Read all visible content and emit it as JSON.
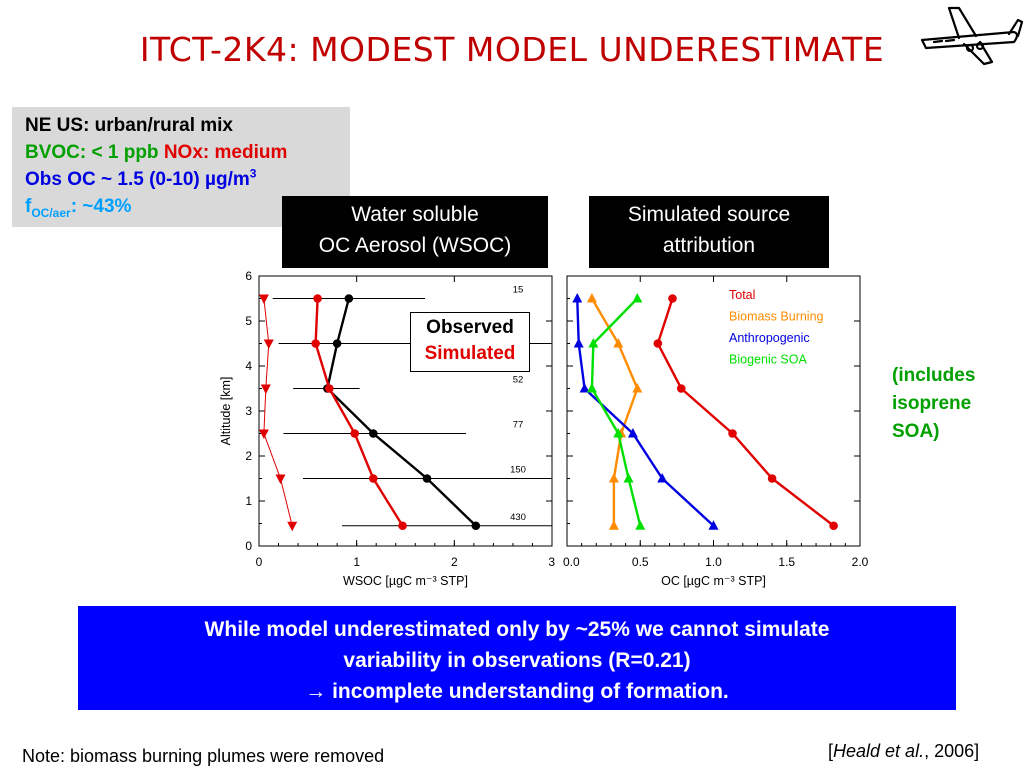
{
  "slide": {
    "title": "ITCT-2K4: MODEST MODEL UNDERESTIMATE",
    "info": {
      "line1": "NE US: urban/rural mix",
      "bvoc": "BVOC: < 1 ppb",
      "nox": "NOx: medium",
      "obs_oc": "Obs OC ~ 1.5 (0-10) µg/m",
      "obs_oc_sup": "3",
      "foc": "f",
      "foc_sub": "OC/aer",
      "foc_val": ": ~43%"
    },
    "wsoc_box": {
      "line1": "Water soluble",
      "line2": "OC Aerosol (WSOC)"
    },
    "source_box": {
      "line1": "Simulated source",
      "line2": "attribution"
    },
    "legend": {
      "observed": "Observed",
      "simulated": "Simulated"
    },
    "includes": {
      "line1": "(includes",
      "line2": "isoprene",
      "line3": "SOA)"
    },
    "conclusion": {
      "line1": "While model underestimated only by ~25% we cannot simulate",
      "line2": "variability in observations (R=0.21)",
      "line3": "→ incomplete understanding of formation."
    },
    "note": "Note: biomass burning plumes were removed",
    "citation": {
      "open": "[",
      "authors": "Heald et al.",
      "rest": ", 2006]"
    },
    "colors": {
      "title": "#c00000",
      "observed": "#000000",
      "simulated": "#e00000",
      "biomass": "#ff8c00",
      "anthropogenic": "#0000e0",
      "biogenic": "#00e000",
      "bluebox": "#0000ff"
    }
  },
  "chart_data": [
    {
      "type": "line",
      "xlabel": "WSOC [µgC m⁻³ STP]",
      "ylabel": "Altitude [km]",
      "xlim": [
        0,
        3
      ],
      "ylim": [
        0,
        6
      ],
      "xticks": [
        "0",
        "1",
        "2",
        "3"
      ],
      "yticks": [
        "0",
        "1",
        "2",
        "3",
        "4",
        "5",
        "6"
      ],
      "series": [
        {
          "name": "Observed",
          "color": "#000000",
          "marker": "circle",
          "x": [
            0.92,
            0.8,
            0.7,
            1.17,
            1.72,
            2.22
          ],
          "y": [
            5.5,
            4.5,
            3.5,
            2.5,
            1.5,
            0.45
          ],
          "xerr": [
            [
              0.14,
              1.7
            ],
            [
              0.2,
              3.0
            ],
            [
              0.35,
              1.03
            ],
            [
              0.25,
              2.12
            ],
            [
              0.45,
              3.0
            ],
            [
              0.85,
              3.0
            ]
          ]
        },
        {
          "name": "Simulated",
          "color": "#e00000",
          "marker": "circle",
          "x": [
            0.6,
            0.58,
            0.72,
            0.98,
            1.17,
            1.47
          ],
          "y": [
            5.5,
            4.5,
            3.5,
            2.5,
            1.5,
            0.45
          ]
        },
        {
          "color": "#e00000",
          "marker": "triangle-down",
          "x": [
            0.05,
            0.1,
            0.07,
            0.05,
            0.22,
            0.34
          ],
          "y": [
            5.5,
            4.5,
            3.5,
            2.5,
            1.5,
            0.45
          ]
        }
      ],
      "annotations": [
        {
          "text": "15",
          "y": 5.5
        },
        {
          "text": "52",
          "y": 3.5
        },
        {
          "text": "77",
          "y": 2.5
        },
        {
          "text": "150",
          "y": 1.5
        },
        {
          "text": "430",
          "y": 0.45
        }
      ]
    },
    {
      "type": "line",
      "xlabel": "OC [µgC m⁻³ STP]",
      "ylabel": "",
      "xlim": [
        0,
        2
      ],
      "ylim": [
        0,
        6
      ],
      "xticks": [
        "0.0",
        "0.5",
        "1.0",
        "1.5",
        "2.0"
      ],
      "series": [
        {
          "name": "Total",
          "color": "#e00000",
          "marker": "circle",
          "x": [
            0.72,
            0.62,
            0.78,
            1.13,
            1.4,
            1.82
          ],
          "y": [
            5.5,
            4.5,
            3.5,
            2.5,
            1.5,
            0.45
          ]
        },
        {
          "name": "Biomass Burning",
          "color": "#ff8c00",
          "marker": "triangle-up",
          "x": [
            0.17,
            0.35,
            0.48,
            0.37,
            0.32,
            0.32
          ],
          "y": [
            5.5,
            4.5,
            3.5,
            2.5,
            1.5,
            0.45
          ]
        },
        {
          "name": "Anthropogenic",
          "color": "#0000e0",
          "marker": "triangle-up",
          "x": [
            0.07,
            0.08,
            0.12,
            0.45,
            0.65,
            1.0
          ],
          "y": [
            5.5,
            4.5,
            3.5,
            2.5,
            1.5,
            0.45
          ]
        },
        {
          "name": "Biogenic SOA",
          "color": "#00e000",
          "marker": "triangle-up",
          "x": [
            0.48,
            0.18,
            0.17,
            0.35,
            0.42,
            0.5
          ],
          "y": [
            5.5,
            4.5,
            3.5,
            2.5,
            1.5,
            0.45
          ]
        }
      ],
      "legend_position": "top-right"
    }
  ]
}
